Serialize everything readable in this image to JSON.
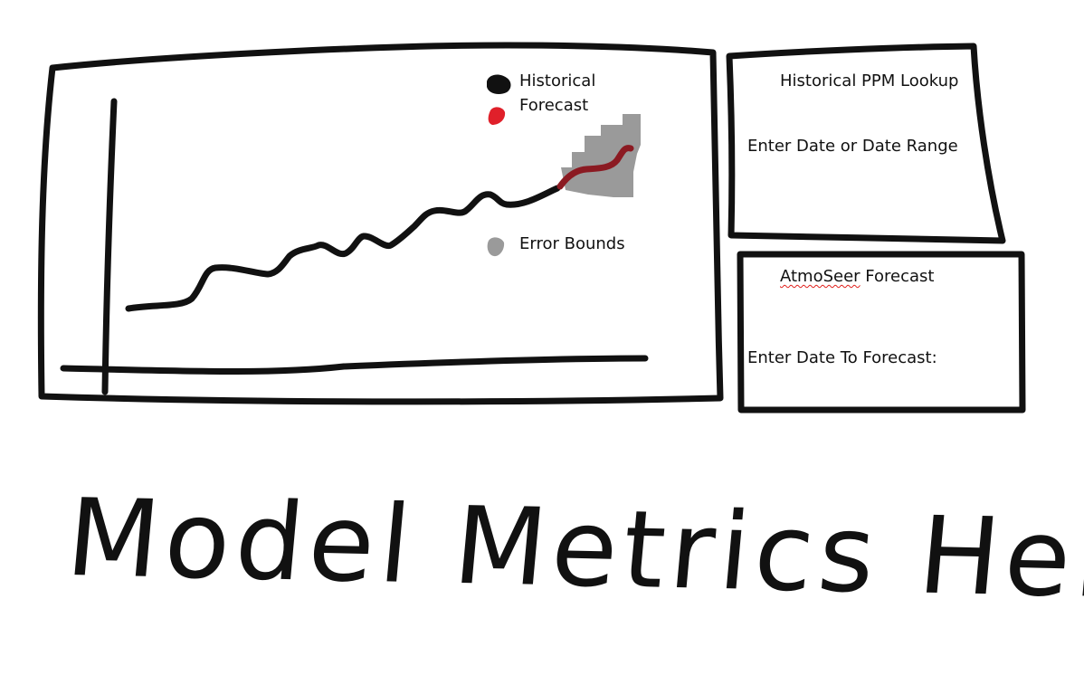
{
  "chart_panel": {
    "legend": {
      "historical": "Historical",
      "forecast": "Forecast",
      "error_bounds": "Error Bounds"
    }
  },
  "lookup_panel": {
    "title": "Historical PPM Lookup",
    "prompt": "Enter Date or Date Range"
  },
  "forecast_panel": {
    "title_word": "AtmoSeer",
    "title_rest": " Forecast",
    "prompt": "Enter Date To Forecast:"
  },
  "metrics_caption": "Model Metrics Here",
  "colors": {
    "ink": "#111111",
    "forecast": "#8b1a22",
    "forecast_legend": "#e0202a",
    "error_band": "#9a9a9a",
    "spellcheck": "#e0201b"
  }
}
